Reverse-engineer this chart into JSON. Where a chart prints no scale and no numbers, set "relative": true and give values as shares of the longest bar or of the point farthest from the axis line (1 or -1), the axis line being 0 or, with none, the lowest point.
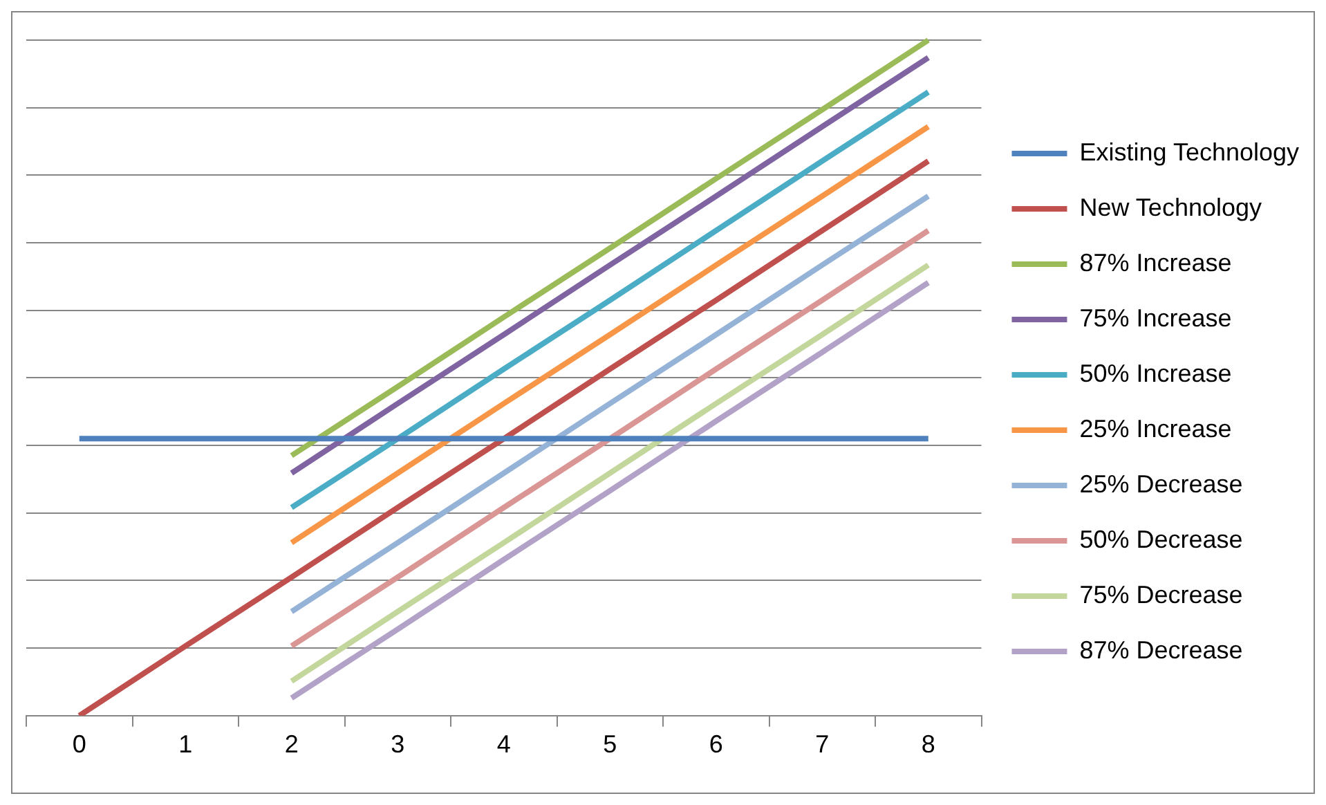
{
  "chart_data": {
    "type": "line",
    "relative": true,
    "categories": [
      "0",
      "1",
      "2",
      "3",
      "4",
      "5",
      "6",
      "7",
      "8"
    ],
    "grid": "y",
    "legend": "right",
    "marker": "none",
    "line_style": "solid",
    "series": [
      {
        "name": "Existing Technology",
        "color": "#4f81bd",
        "values": [
          0.41,
          0.41,
          0.41,
          0.41,
          0.41,
          0.41,
          0.41,
          0.41,
          0.41
        ]
      },
      {
        "name": "New Technology",
        "color": "#c0504d",
        "values": [
          0,
          0.103,
          0.205,
          0.308,
          0.41,
          0.513,
          0.615,
          0.718,
          0.821
        ]
      },
      {
        "name": "87% Increase",
        "color": "#9bbb59",
        "values": [
          null,
          null,
          0.385,
          0.487,
          0.59,
          0.692,
          0.795,
          0.897,
          1
        ]
      },
      {
        "name": "75% Increase",
        "color": "#8064a2",
        "values": [
          null,
          null,
          0.359,
          0.462,
          0.564,
          0.667,
          0.769,
          0.872,
          0.974
        ]
      },
      {
        "name": "50% Increase",
        "color": "#4bacc6",
        "values": [
          null,
          null,
          0.308,
          0.41,
          0.513,
          0.615,
          0.718,
          0.821,
          0.923
        ]
      },
      {
        "name": "25% Increase",
        "color": "#f79646",
        "values": [
          null,
          null,
          0.256,
          0.359,
          0.462,
          0.564,
          0.667,
          0.769,
          0.872
        ]
      },
      {
        "name": "25% Decrease",
        "color": "#95b3d7",
        "values": [
          null,
          null,
          0.154,
          0.256,
          0.359,
          0.462,
          0.564,
          0.667,
          0.769
        ]
      },
      {
        "name": "50% Decrease",
        "color": "#d99694",
        "values": [
          null,
          null,
          0.103,
          0.205,
          0.308,
          0.41,
          0.513,
          0.615,
          0.718
        ]
      },
      {
        "name": "75% Decrease",
        "color": "#c3d69b",
        "values": [
          null,
          null,
          0.051,
          0.154,
          0.256,
          0.359,
          0.462,
          0.564,
          0.667
        ]
      },
      {
        "name": "87% Decrease",
        "color": "#b3a2c7",
        "values": [
          null,
          null,
          0.026,
          0.128,
          0.231,
          0.333,
          0.436,
          0.538,
          0.641
        ]
      }
    ]
  }
}
